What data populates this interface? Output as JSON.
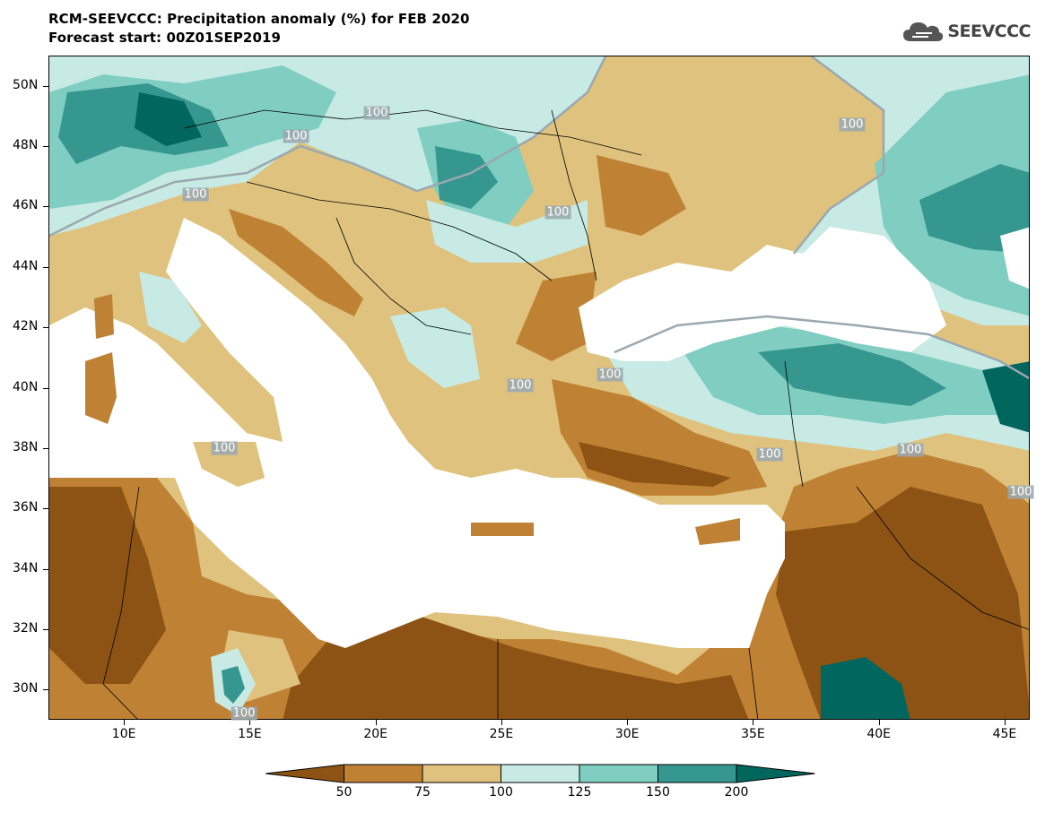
{
  "title_line1": "RCM-SEEVCCC: Precipitation anomaly (%) for FEB 2020",
  "title_line2": "Forecast start: 00Z01SEP2019",
  "logo": {
    "text": "SEEVCCC",
    "icon": "cloud-icon"
  },
  "colors": {
    "lt50": "#8c5314",
    "c50_75": "#bf8234",
    "c75_100": "#dfc27d",
    "c100_125": "#c7eae5",
    "c125_150": "#80cdc1",
    "c150_200": "#35978f",
    "gt200": "#01665e",
    "sea": "#ffffff",
    "contour": "#9aa8b0"
  },
  "axes": {
    "lat_labels": [
      "50N",
      "48N",
      "46N",
      "44N",
      "42N",
      "40N",
      "38N",
      "36N",
      "34N",
      "32N",
      "30N"
    ],
    "lon_labels": [
      "10E",
      "15E",
      "20E",
      "25E",
      "30E",
      "35E",
      "40E",
      "45E"
    ],
    "lat_range": [
      29,
      51
    ],
    "lon_range": [
      7,
      46
    ]
  },
  "contour_labels": [
    "100",
    "100",
    "100",
    "100",
    "100",
    "100",
    "100",
    "100",
    "100",
    "100",
    "100",
    "100"
  ],
  "colorbar": {
    "labels": [
      "50",
      "75",
      "100",
      "125",
      "150",
      "200"
    ]
  }
}
